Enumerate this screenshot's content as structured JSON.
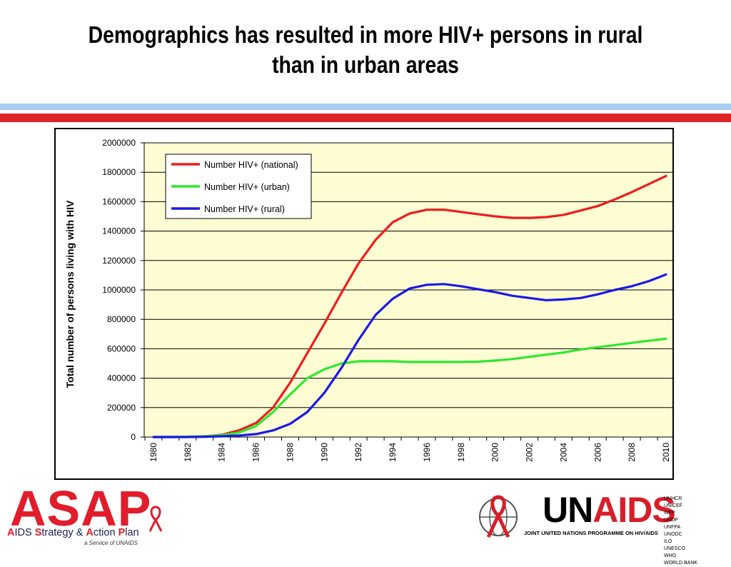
{
  "slide": {
    "title_line1": "Demographics has resulted in more HIV+ persons in rural",
    "title_line2": "than in urban areas"
  },
  "colors": {
    "stripe_light": "#a9cdf0",
    "stripe_red": "#dc2626",
    "plot_bg": "#fefcd3",
    "national": "#ee1c1c",
    "urban": "#2ee82e",
    "rural": "#1a1ae6"
  },
  "chart_data": {
    "type": "line",
    "ylabel": "Total number of persons living with  HIV",
    "xlabel": "",
    "ylim": [
      0,
      2000000
    ],
    "yticks": [
      "0",
      "200000",
      "400000",
      "600000",
      "800000",
      "1000000",
      "1200000",
      "1400000",
      "1600000",
      "1800000",
      "2000000"
    ],
    "xticks": [
      "1980",
      "1982",
      "1984",
      "1986",
      "1988",
      "1990",
      "1992",
      "1994",
      "1996",
      "1998",
      "2000",
      "2002",
      "2004",
      "2006",
      "2008",
      "2010"
    ],
    "grid": true,
    "legend_position": "top-left",
    "x": [
      1980,
      1981,
      1982,
      1983,
      1984,
      1985,
      1986,
      1987,
      1988,
      1989,
      1990,
      1991,
      1992,
      1993,
      1994,
      1995,
      1996,
      1997,
      1998,
      1999,
      2000,
      2001,
      2002,
      2003,
      2004,
      2005,
      2006,
      2007,
      2008,
      2009,
      2010
    ],
    "series": [
      {
        "name": "Number HIV+ (national)",
        "color": "#ee1c1c",
        "values": [
          0,
          0,
          2000,
          5000,
          15000,
          45000,
          95000,
          200000,
          370000,
          570000,
          770000,
          980000,
          1180000,
          1340000,
          1460000,
          1520000,
          1545000,
          1545000,
          1530000,
          1515000,
          1500000,
          1490000,
          1490000,
          1495000,
          1510000,
          1540000,
          1570000,
          1615000,
          1665000,
          1720000,
          1775000
        ]
      },
      {
        "name": "Number HIV+  (urban)",
        "color": "#2ee82e",
        "values": [
          0,
          0,
          2000,
          5000,
          12000,
          30000,
          75000,
          170000,
          290000,
          400000,
          460000,
          500000,
          515000,
          515000,
          515000,
          510000,
          510000,
          510000,
          510000,
          512000,
          520000,
          530000,
          545000,
          560000,
          575000,
          595000,
          610000,
          625000,
          640000,
          655000,
          668000
        ]
      },
      {
        "name": "Number HIV+ (rural)",
        "color": "#1a1ae6",
        "values": [
          0,
          0,
          0,
          2000,
          5000,
          10000,
          20000,
          45000,
          90000,
          170000,
          300000,
          470000,
          660000,
          830000,
          940000,
          1010000,
          1035000,
          1040000,
          1025000,
          1005000,
          985000,
          960000,
          945000,
          930000,
          935000,
          945000,
          970000,
          1000000,
          1025000,
          1060000,
          1105000
        ]
      }
    ]
  },
  "footer": {
    "asap_logo": "ASAP",
    "asap_tagline_parts": [
      "A",
      "IDS ",
      "S",
      "trategy & ",
      "A",
      "ction ",
      "P",
      "lan"
    ],
    "asap_service": "a Service of UNAIDS",
    "unaids_un": "UN",
    "unaids_aids": "AIDS",
    "unaids_sub": "JOINT UNITED NATIONS PROGRAMME ON HIV/AIDS",
    "agencies_col1": [
      "UNHCR",
      "UNICEF",
      "WFP",
      "UNDP",
      "UNFPA"
    ],
    "agencies_col2": [
      "UNODC",
      "ILO",
      "UNESCO",
      "WHO",
      "WORLD BANK"
    ]
  }
}
